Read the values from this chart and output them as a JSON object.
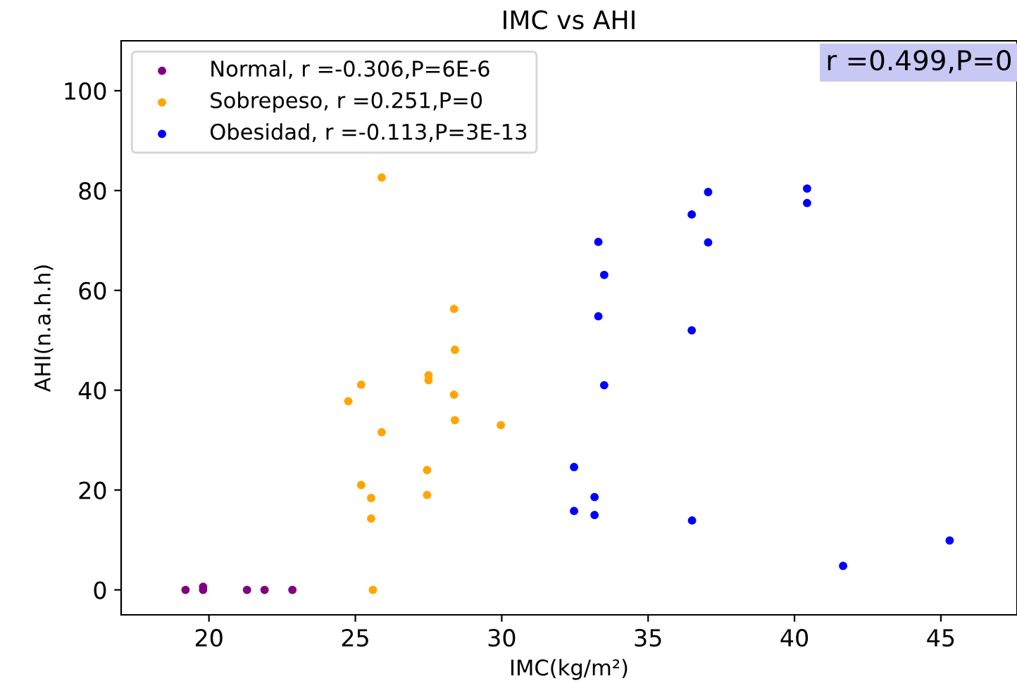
{
  "chart_data": {
    "type": "scatter",
    "title": "IMC vs AHI",
    "xlabel": "IMC(kg/m²)",
    "ylabel": "AHI(n.a.h.h)",
    "annotations": [
      "r =0.499,P=0"
    ],
    "series": [
      {
        "name": "Normal, r =-0.306,P=6E-6",
        "color": "#800080",
        "x": [
          19.2,
          19.8,
          19.8,
          21.3,
          21.9,
          22.85
        ],
        "values": [
          0,
          0.6,
          0,
          0,
          0,
          0
        ]
      },
      {
        "name": "Sobrepeso, r =0.251,P=0",
        "color": "#ffa500",
        "x": [
          25.9,
          28.37,
          28.4,
          27.5,
          27.5,
          25.2,
          24.76,
          28.37,
          28.4,
          29.97,
          25.9,
          27.45,
          25.2,
          25.54,
          27.45,
          25.54,
          25.6
        ],
        "values": [
          82.6,
          56.3,
          48.1,
          43.0,
          42.0,
          41.1,
          37.8,
          39.1,
          34.0,
          33.0,
          31.6,
          24.0,
          21.0,
          18.4,
          19.0,
          14.3,
          0
        ]
      },
      {
        "name": "Obesidad, r =-0.113,P=3E-13",
        "color": "#0000ff",
        "x": [
          37.05,
          40.43,
          40.43,
          36.49,
          33.3,
          37.05,
          33.5,
          33.3,
          36.49,
          33.5,
          32.47,
          33.17,
          32.47,
          33.17,
          36.5,
          41.66,
          45.3
        ],
        "values": [
          79.7,
          80.4,
          77.5,
          75.2,
          69.7,
          69.6,
          63.1,
          54.8,
          52.0,
          41.0,
          24.6,
          18.6,
          15.8,
          15.0,
          13.9,
          4.8,
          9.9
        ]
      }
    ],
    "xlim": [
      17,
      47.6
    ],
    "ylim": [
      -5,
      110
    ],
    "xticks": [
      20,
      25,
      30,
      35,
      40,
      45
    ],
    "yticks": [
      0,
      20,
      40,
      60,
      80,
      100
    ],
    "grid": false,
    "legend": "top left",
    "marker": "circle"
  }
}
